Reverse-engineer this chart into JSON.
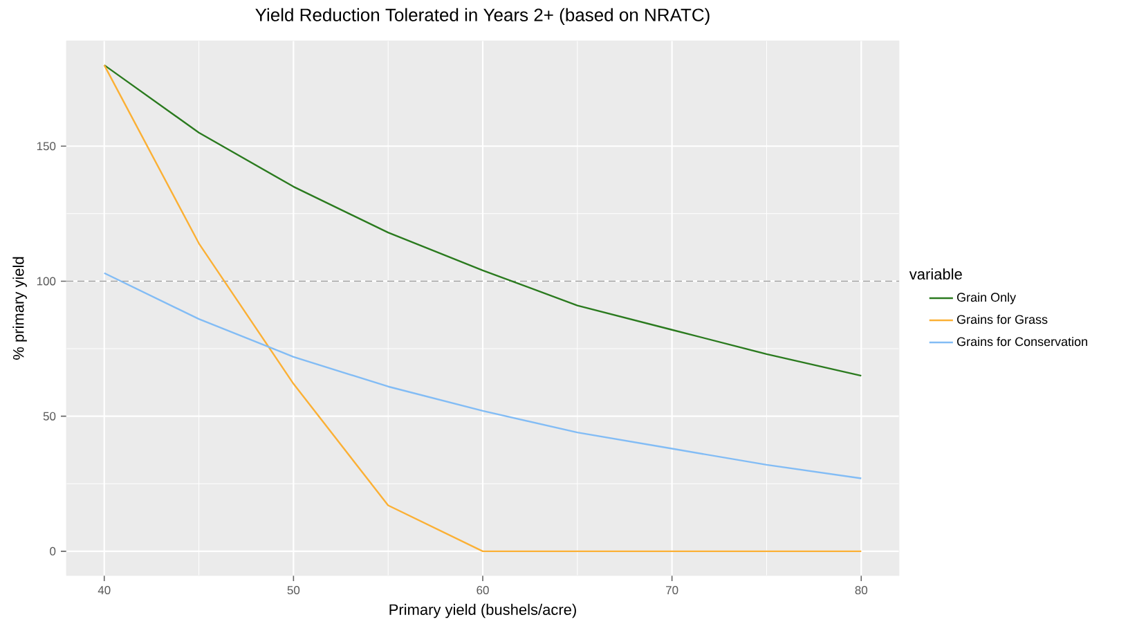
{
  "chart_data": {
    "type": "line",
    "title": "Yield Reduction Tolerated in Years 2+ (based on NRATC)",
    "xlabel": "Primary yield (bushels/acre)",
    "ylabel": "% primary yield",
    "legend_title": "variable",
    "x": [
      40,
      45,
      50,
      55,
      60,
      65,
      70,
      75,
      80
    ],
    "series": [
      {
        "name": "Grain Only",
        "color": "#2a7a1e",
        "values": [
          180,
          155,
          135,
          118,
          104,
          91,
          82,
          73,
          65
        ]
      },
      {
        "name": "Grains for Grass",
        "color": "#fbb035",
        "values": [
          180,
          114,
          62,
          17,
          0,
          0,
          0,
          0,
          0
        ]
      },
      {
        "name": "Grains for Conservation",
        "color": "#82bcf5",
        "values": [
          103,
          86,
          72,
          61,
          52,
          44,
          38,
          32,
          27
        ]
      }
    ],
    "xlim": [
      38,
      82
    ],
    "ylim": [
      -9,
      189
    ],
    "xticks": [
      40,
      50,
      60,
      70,
      80
    ],
    "yticks": [
      0,
      50,
      100,
      150
    ],
    "grid": true,
    "legend": "right",
    "marker": "none",
    "line_style": "solid",
    "ref_lines": [
      {
        "axis": "y",
        "value": 100,
        "color": "#999999",
        "line_style": "dashed"
      }
    ]
  }
}
